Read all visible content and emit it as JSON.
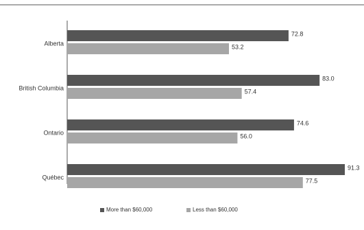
{
  "chart_data": {
    "type": "bar",
    "orientation": "horizontal",
    "categories": [
      "Alberta",
      "British Columbia",
      "Ontario",
      "Québec"
    ],
    "series": [
      {
        "name": "More than $60,000",
        "values": [
          72.8,
          83.0,
          74.6,
          91.3
        ],
        "labels": [
          "72.8",
          "83.0",
          "74.6",
          "91.3"
        ],
        "color": "#555555"
      },
      {
        "name": "Less than $60,000",
        "values": [
          53.2,
          57.4,
          56.0,
          77.5
        ],
        "labels": [
          "53.2",
          "57.4",
          "56.0",
          "77.5"
        ],
        "color": "#a6a6a6"
      }
    ],
    "xlim": [
      0,
      91.3
    ],
    "grid": false,
    "legend": "bottom"
  }
}
